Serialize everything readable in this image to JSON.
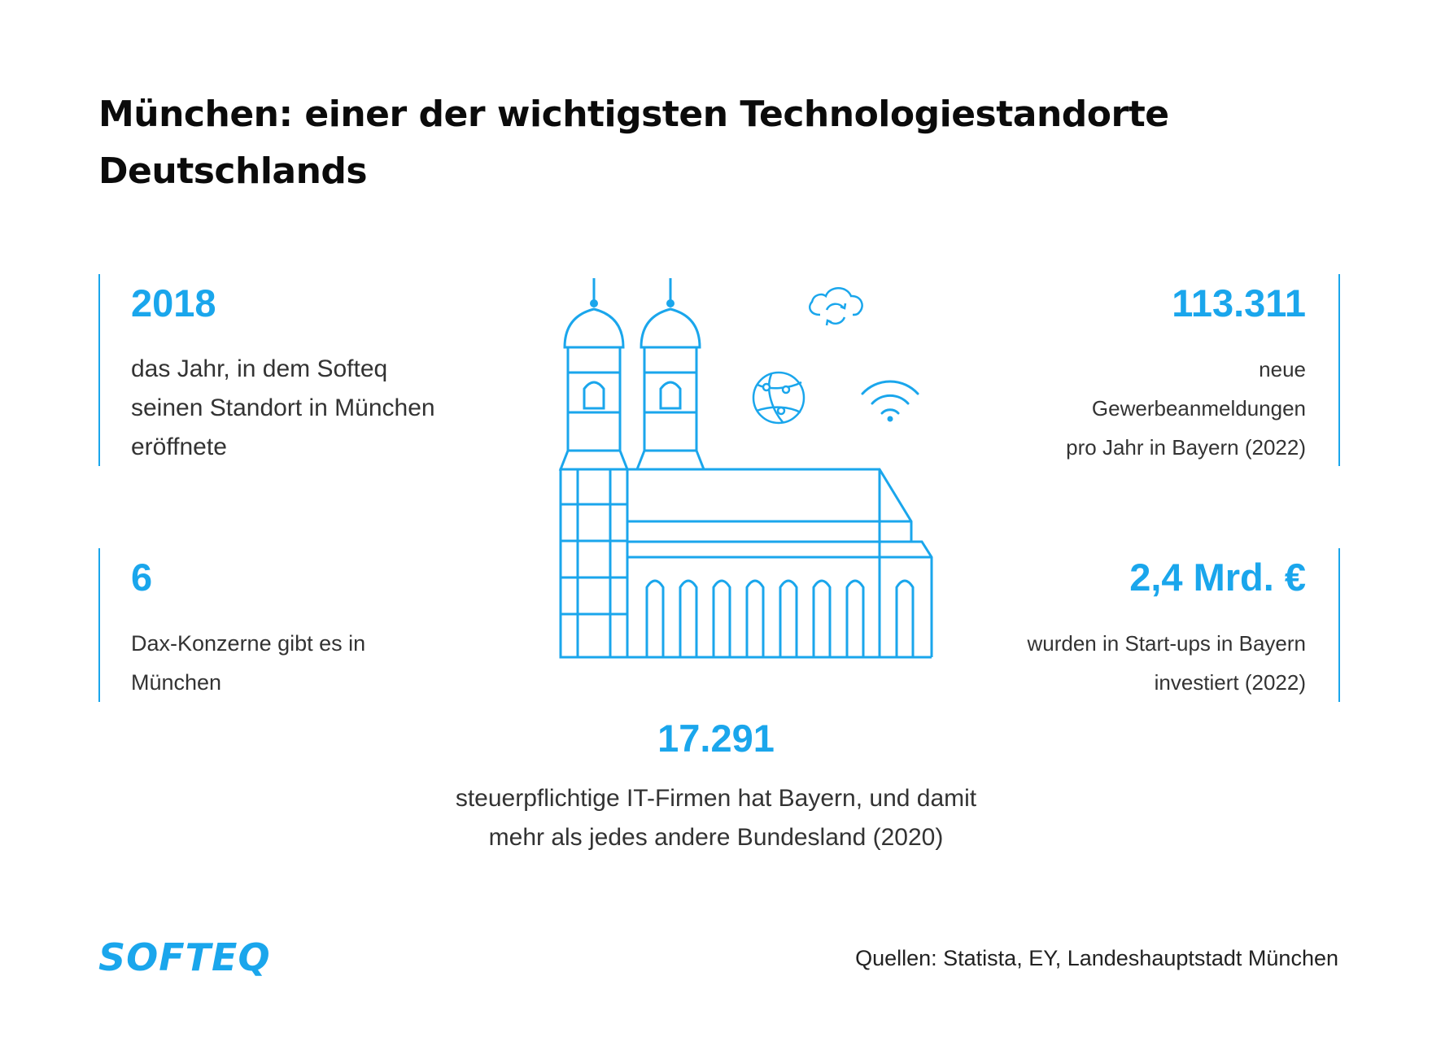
{
  "title": {
    "line1": "München: einer der wichtigsten Technologiestandorte",
    "line2": "Deutschlands"
  },
  "stats": {
    "year": {
      "value": "2018",
      "lines": [
        "das Jahr, in dem Softeq",
        "seinen Standort in München",
        "eröffnete"
      ]
    },
    "dax": {
      "value": "6",
      "lines": [
        "Dax-Konzerne gibt es in",
        "München"
      ]
    },
    "gewerbe": {
      "value": "113.311",
      "lines": [
        "neue",
        "Gewerbeanmeldungen",
        "pro Jahr in Bayern (2022)"
      ]
    },
    "startups": {
      "value": "2,4 Mrd. €",
      "lines": [
        "wurden in Start-ups in Bayern",
        "investiert (2022)"
      ]
    },
    "itfirmen": {
      "value": "17.291",
      "lines": [
        "steuerpflichtige IT-Firmen hat Bayern, und damit",
        "mehr als jedes andere Bundesland (2020)"
      ]
    }
  },
  "logo": "SOFTEQ",
  "sources": "Quellen: Statista, EY, Landeshauptstadt München",
  "colors": {
    "accent": "#1aa6ec",
    "title": "#0b0b0b",
    "text": "#333333"
  },
  "icons": [
    "cathedral-icon",
    "cloud-sync-icon",
    "globe-network-icon",
    "wifi-icon"
  ]
}
